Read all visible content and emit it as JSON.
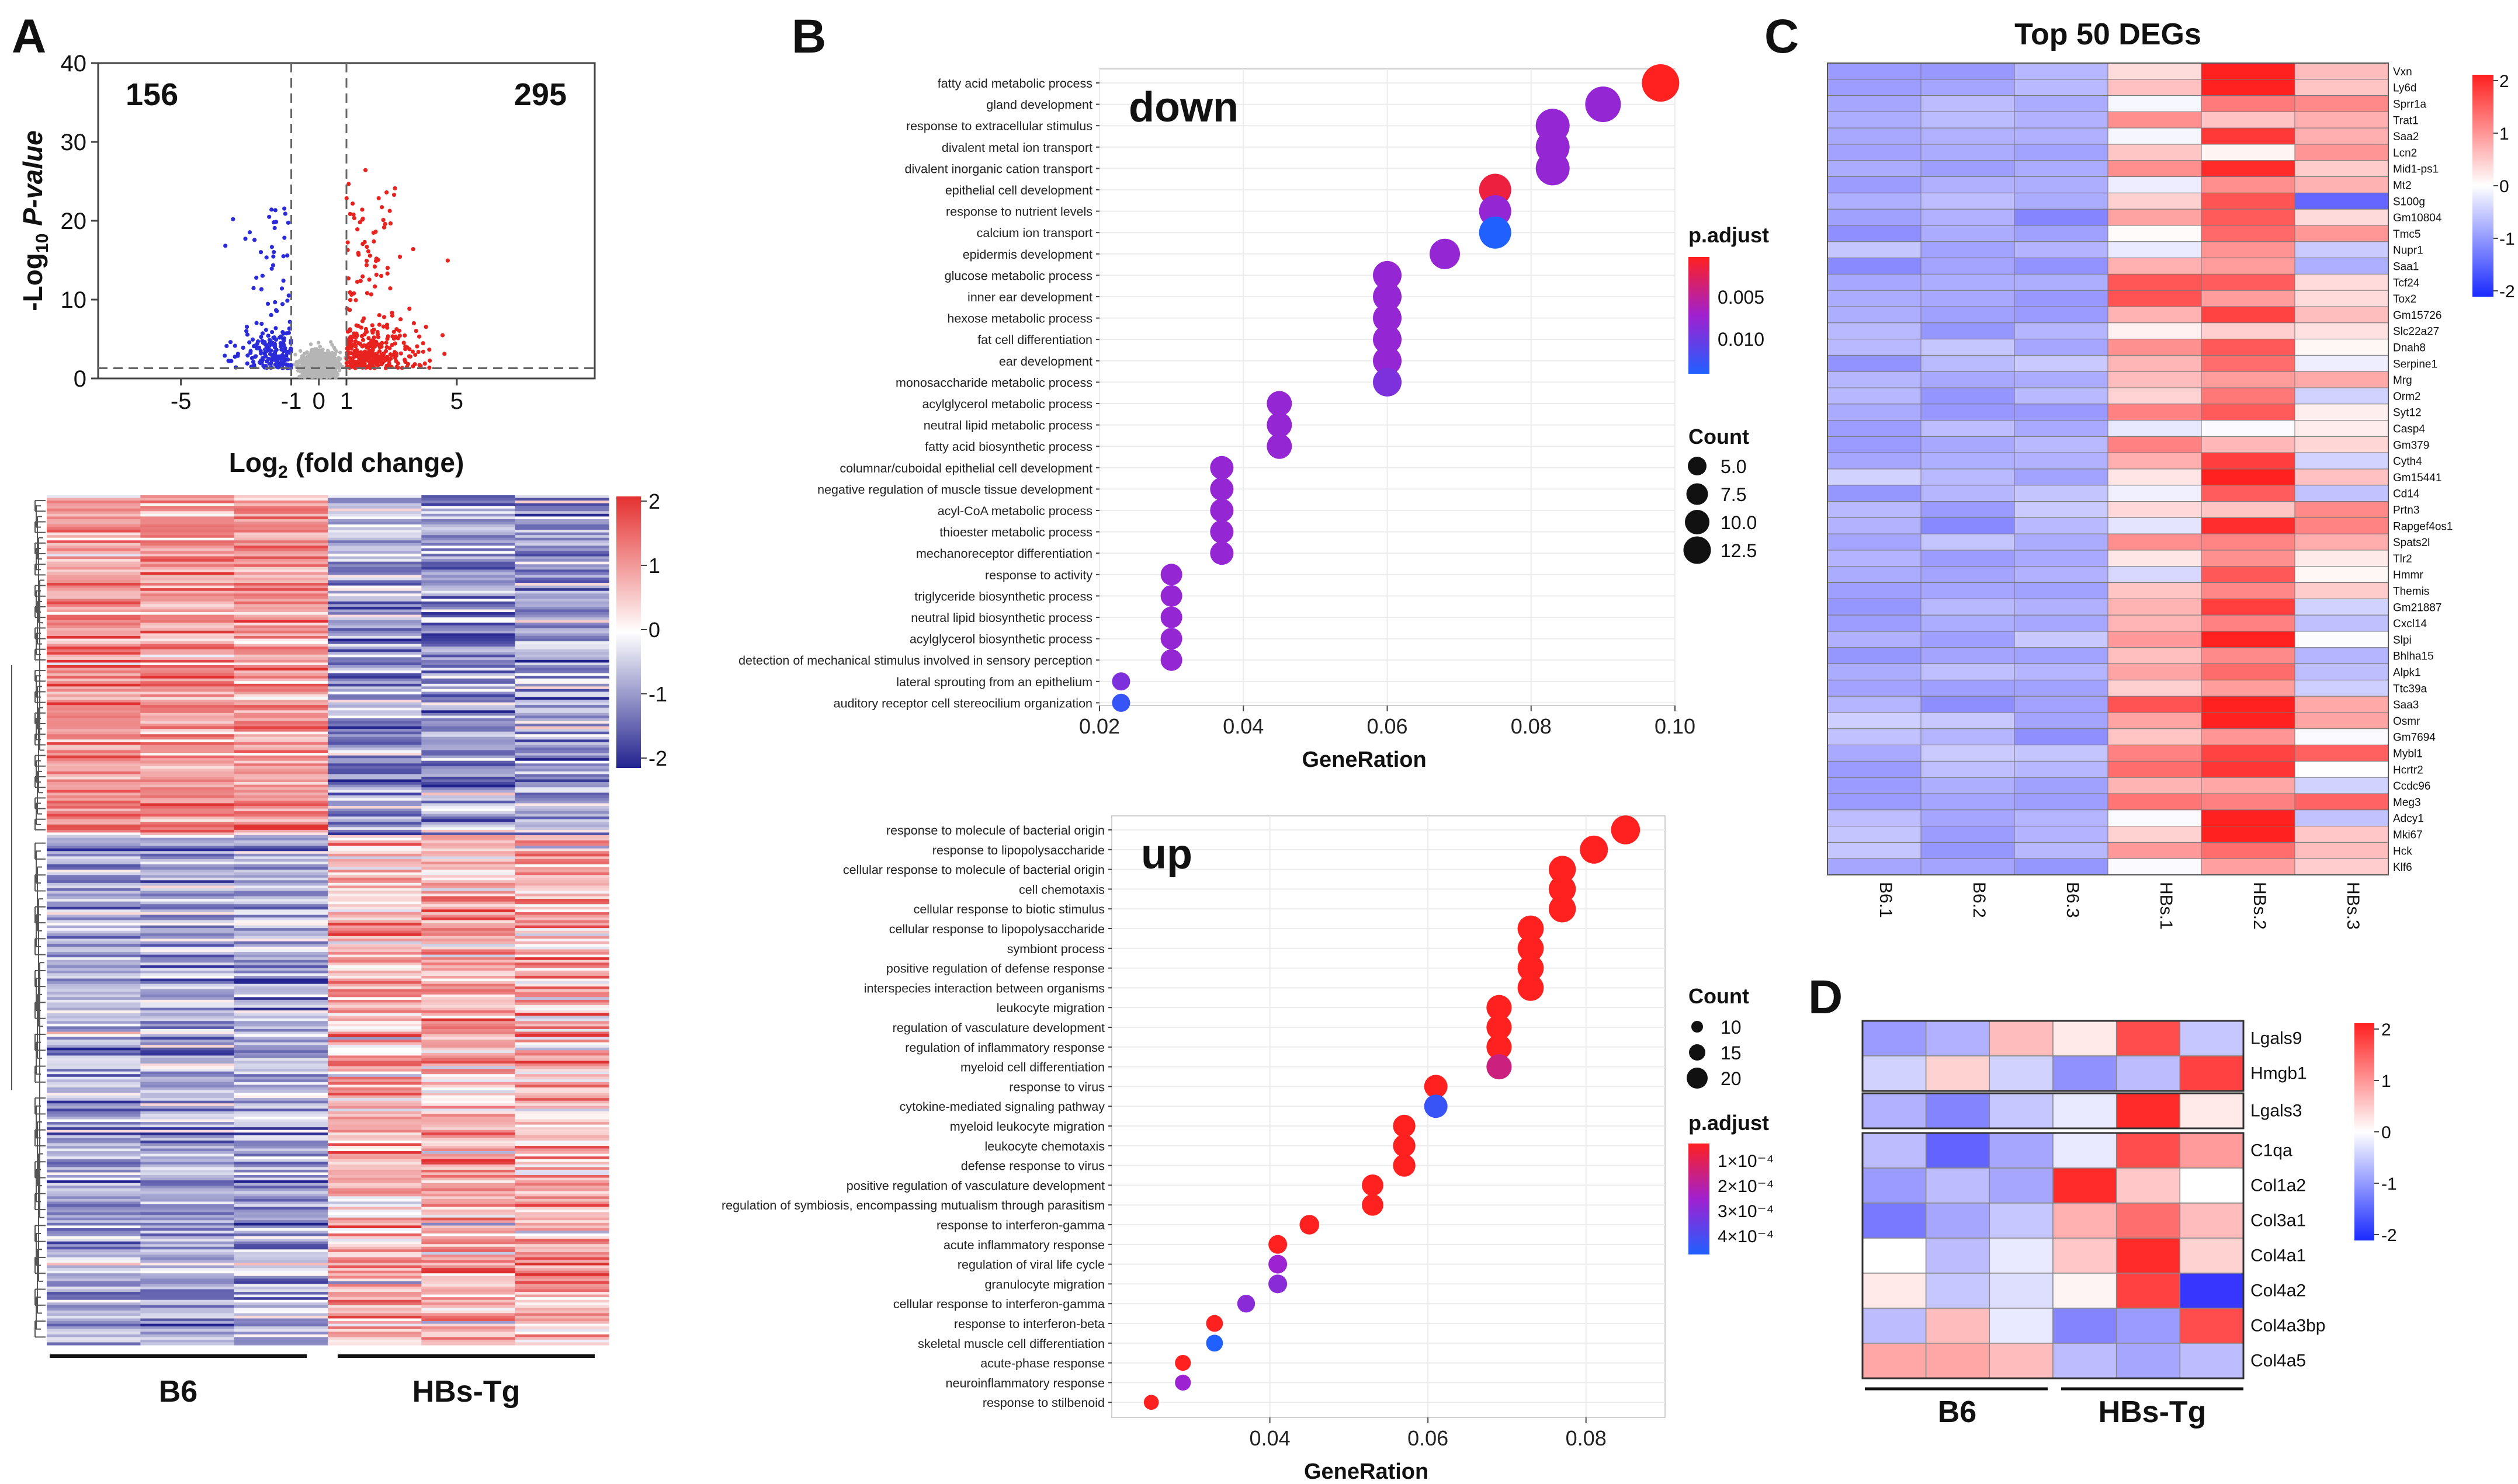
{
  "panels": {
    "A": {
      "label": "A"
    },
    "B": {
      "label": "B"
    },
    "C": {
      "label": "C"
    },
    "D": {
      "label": "D"
    }
  },
  "chart_data": [
    {
      "id": "volcano",
      "type": "scatter",
      "title": "",
      "xlabel_base": "Log",
      "xlabel_sub": "2",
      "xlabel_rest": " (fold change)",
      "ylabel_pre": "-Log",
      "ylabel_sub": "10",
      "ylabel_rest": " P-value",
      "xlim": [
        -8,
        10
      ],
      "ylim": [
        0,
        40
      ],
      "xticks": [
        -5,
        -1,
        0,
        1,
        5
      ],
      "yticks": [
        0,
        10,
        20,
        30,
        40
      ],
      "thresholds": {
        "fold_change": [
          -1,
          1
        ],
        "p_value_line": 1.3
      },
      "down_count": "156",
      "up_count": "295",
      "colors": {
        "down": "#2b2bd9",
        "up": "#e8231f",
        "ns": "#b5b5b5"
      }
    },
    {
      "id": "heatmapA",
      "type": "heatmap",
      "groups": [
        "B6",
        "HBs-Tg"
      ],
      "columns": 6,
      "legend_ticks": [
        "2",
        "1",
        "0",
        "-1",
        "-2"
      ],
      "colors": {
        "high": "#e03030",
        "mid": "#ffffff",
        "low": "#22228f"
      }
    },
    {
      "id": "go_down",
      "type": "scatter",
      "title": "down",
      "xlabel": "GeneRation",
      "xlim": [
        0.02,
        0.1
      ],
      "xticks": [
        "0.02",
        "0.04",
        "0.06",
        "0.08",
        "0.10"
      ],
      "legend_color_title": "p.adjust",
      "legend_color_ticks": [
        "0.005",
        "0.010"
      ],
      "legend_size_title": "Count",
      "legend_size_ticks": [
        "5.0",
        "7.5",
        "10.0",
        "12.5"
      ],
      "terms": [
        {
          "term": "fatty acid metabolic process",
          "x": 0.098,
          "count": 14,
          "padj": 0.002
        },
        {
          "term": "gland development",
          "x": 0.09,
          "count": 13,
          "padj": 0.008
        },
        {
          "term": "response to extracellular stimulus",
          "x": 0.083,
          "count": 12,
          "padj": 0.008
        },
        {
          "term": "divalent metal ion transport",
          "x": 0.083,
          "count": 12,
          "padj": 0.008
        },
        {
          "term": "divalent inorganic cation transport",
          "x": 0.083,
          "count": 12,
          "padj": 0.008
        },
        {
          "term": "epithelial cell development",
          "x": 0.075,
          "count": 11,
          "padj": 0.003
        },
        {
          "term": "response to nutrient levels",
          "x": 0.075,
          "count": 11,
          "padj": 0.008
        },
        {
          "term": "calcium ion transport",
          "x": 0.075,
          "count": 11,
          "padj": 0.013
        },
        {
          "term": "epidermis development",
          "x": 0.068,
          "count": 10,
          "padj": 0.008
        },
        {
          "term": "glucose metabolic process",
          "x": 0.06,
          "count": 9,
          "padj": 0.008
        },
        {
          "term": "inner ear development",
          "x": 0.06,
          "count": 9,
          "padj": 0.008
        },
        {
          "term": "hexose metabolic process",
          "x": 0.06,
          "count": 9,
          "padj": 0.008
        },
        {
          "term": "fat cell differentiation",
          "x": 0.06,
          "count": 9,
          "padj": 0.008
        },
        {
          "term": "ear development",
          "x": 0.06,
          "count": 9,
          "padj": 0.008
        },
        {
          "term": "monosaccharide metabolic process",
          "x": 0.06,
          "count": 9,
          "padj": 0.009
        },
        {
          "term": "acylglycerol metabolic process",
          "x": 0.045,
          "count": 7,
          "padj": 0.008
        },
        {
          "term": "neutral lipid metabolic process",
          "x": 0.045,
          "count": 7,
          "padj": 0.008
        },
        {
          "term": "fatty acid biosynthetic process",
          "x": 0.045,
          "count": 7,
          "padj": 0.008
        },
        {
          "term": "columnar/cuboidal epithelial cell development",
          "x": 0.037,
          "count": 6,
          "padj": 0.008
        },
        {
          "term": "negative regulation of muscle tissue development",
          "x": 0.037,
          "count": 6,
          "padj": 0.008
        },
        {
          "term": "acyl-CoA metabolic process",
          "x": 0.037,
          "count": 6,
          "padj": 0.008
        },
        {
          "term": "thioester metabolic process",
          "x": 0.037,
          "count": 6,
          "padj": 0.008
        },
        {
          "term": "mechanoreceptor differentiation",
          "x": 0.037,
          "count": 6,
          "padj": 0.008
        },
        {
          "term": "response to activity",
          "x": 0.03,
          "count": 5,
          "padj": 0.008
        },
        {
          "term": "triglyceride biosynthetic process",
          "x": 0.03,
          "count": 5,
          "padj": 0.008
        },
        {
          "term": "neutral lipid biosynthetic process",
          "x": 0.03,
          "count": 5,
          "padj": 0.008
        },
        {
          "term": "acylglycerol biosynthetic process",
          "x": 0.03,
          "count": 5,
          "padj": 0.008
        },
        {
          "term": "detection of mechanical stimulus involved in sensory perception",
          "x": 0.03,
          "count": 5,
          "padj": 0.008
        },
        {
          "term": "lateral sprouting from an epithelium",
          "x": 0.023,
          "count": 3,
          "padj": 0.009
        },
        {
          "term": "auditory receptor cell stereocilium organization",
          "x": 0.023,
          "count": 3,
          "padj": 0.012
        }
      ]
    },
    {
      "id": "go_up",
      "type": "scatter",
      "title": "up",
      "xlabel": "GeneRation",
      "xlim": [
        0.02,
        0.09
      ],
      "xticks": [
        "0.04",
        "0.06",
        "0.08"
      ],
      "legend_size_title": "Count",
      "legend_size_ticks": [
        "10",
        "15",
        "20"
      ],
      "legend_color_title": "p.adjust",
      "legend_color_ticks": [
        "1×10⁻⁴",
        "2×10⁻⁴",
        "3×10⁻⁴",
        "4×10⁻⁴"
      ],
      "terms": [
        {
          "term": "response to molecule of bacterial origin",
          "x": 0.085,
          "count": 21,
          "padj": 1e-05
        },
        {
          "term": "response to lipopolysaccharide",
          "x": 0.081,
          "count": 20,
          "padj": 1e-05
        },
        {
          "term": "cellular response to molecule of bacterial origin",
          "x": 0.077,
          "count": 19,
          "padj": 1e-05
        },
        {
          "term": "cell chemotaxis",
          "x": 0.077,
          "count": 19,
          "padj": 1e-05
        },
        {
          "term": "cellular response to biotic stimulus",
          "x": 0.077,
          "count": 19,
          "padj": 1e-05
        },
        {
          "term": "cellular response to lipopolysaccharide",
          "x": 0.073,
          "count": 18,
          "padj": 1e-05
        },
        {
          "term": "symbiont process",
          "x": 0.073,
          "count": 18,
          "padj": 1e-05
        },
        {
          "term": "positive regulation of defense response",
          "x": 0.073,
          "count": 18,
          "padj": 1e-05
        },
        {
          "term": "interspecies interaction between organisms",
          "x": 0.073,
          "count": 18,
          "padj": 1e-05
        },
        {
          "term": "leukocyte migration",
          "x": 0.069,
          "count": 17,
          "padj": 1e-05
        },
        {
          "term": "regulation of vasculature development",
          "x": 0.069,
          "count": 17,
          "padj": 1e-05
        },
        {
          "term": "regulation of inflammatory response",
          "x": 0.069,
          "count": 17,
          "padj": 1e-05
        },
        {
          "term": "myeloid cell differentiation",
          "x": 0.069,
          "count": 17,
          "padj": 0.00012
        },
        {
          "term": "response to virus",
          "x": 0.061,
          "count": 15,
          "padj": 1e-05
        },
        {
          "term": "cytokine-mediated signaling pathway",
          "x": 0.061,
          "count": 15,
          "padj": 0.00038
        },
        {
          "term": "myeloid leukocyte migration",
          "x": 0.057,
          "count": 14,
          "padj": 1e-05
        },
        {
          "term": "leukocyte chemotaxis",
          "x": 0.057,
          "count": 14,
          "padj": 1e-05
        },
        {
          "term": "defense response to virus",
          "x": 0.057,
          "count": 14,
          "padj": 1e-05
        },
        {
          "term": "positive regulation of vasculature development",
          "x": 0.053,
          "count": 13,
          "padj": 1e-05
        },
        {
          "term": "regulation of symbiosis, encompassing mutualism through parasitism",
          "x": 0.053,
          "count": 13,
          "padj": 1e-05
        },
        {
          "term": "response to interferon-gamma",
          "x": 0.045,
          "count": 11,
          "padj": 1e-05
        },
        {
          "term": "acute inflammatory response",
          "x": 0.041,
          "count": 10,
          "padj": 1e-05
        },
        {
          "term": "regulation of viral life cycle",
          "x": 0.041,
          "count": 10,
          "padj": 0.00022
        },
        {
          "term": "granulocyte migration",
          "x": 0.041,
          "count": 10,
          "padj": 0.00025
        },
        {
          "term": "cellular response to interferon-gamma",
          "x": 0.037,
          "count": 9,
          "padj": 0.00025
        },
        {
          "term": "response to interferon-beta",
          "x": 0.033,
          "count": 8,
          "padj": 1e-05
        },
        {
          "term": "skeletal muscle cell differentiation",
          "x": 0.033,
          "count": 8,
          "padj": 0.00042
        },
        {
          "term": "acute-phase response",
          "x": 0.029,
          "count": 7,
          "padj": 1e-05
        },
        {
          "term": "neuroinflammatory response",
          "x": 0.029,
          "count": 7,
          "padj": 0.00022
        },
        {
          "term": "response to stilbenoid",
          "x": 0.025,
          "count": 6,
          "padj": 1e-05
        }
      ]
    },
    {
      "id": "heatmapC",
      "type": "heatmap",
      "title": "Top 50 DEGs",
      "columns": [
        "B6.1",
        "B6.2",
        "B6.3",
        "HBs.1",
        "HBs.2",
        "HBs.3"
      ],
      "legend_ticks": [
        "2",
        "1",
        "0",
        "-1",
        "-2"
      ],
      "rows": [
        "Vxn",
        "Ly6d",
        "Sprr1a",
        "Trat1",
        "Saa2",
        "Lcn2",
        "Mid1-ps1",
        "Mt2",
        "S100g",
        "Gm10804",
        "Tmc5",
        "Nupr1",
        "Saa1",
        "Tcf24",
        "Tox2",
        "Gm15726",
        "Slc22a27",
        "Dnah8",
        "Serpine1",
        "Mrg",
        "Orm2",
        "Syt12",
        "Casp4",
        "Gm379",
        "Cyth4",
        "Gm15441",
        "Cd14",
        "Prtn3",
        "Rapgef4os1",
        "Spats2l",
        "Tlr2",
        "Hmmr",
        "Themis",
        "Gm21887",
        "Cxcl14",
        "Slpi",
        "Bhlha15",
        "Alpk1",
        "Ttc39a",
        "Saa3",
        "Osmr",
        "Gm7694",
        "Mybl1",
        "Hcrtr2",
        "Ccdc96",
        "Meg3",
        "Adcy1",
        "Mki67",
        "Hck",
        "Klf6"
      ]
    },
    {
      "id": "heatmapD",
      "type": "heatmap",
      "groups": [
        "B6",
        "HBs-Tg"
      ],
      "legend_ticks": [
        "2",
        "1",
        "0",
        "-1",
        "-2"
      ],
      "rows": [
        "Lgals9",
        "Hmgb1",
        "Lgals3",
        "C1qa",
        "Col1a2",
        "Col3a1",
        "Col4a1",
        "Col4a2",
        "Col4a3bp",
        "Col4a5"
      ],
      "values": [
        [
          -0.9,
          -0.7,
          0.6,
          0.2,
          1.6,
          -0.5
        ],
        [
          -0.4,
          0.4,
          -0.4,
          -1.0,
          -0.6,
          1.7
        ],
        [
          -0.7,
          -1.1,
          -0.5,
          -0.2,
          1.9,
          0.2
        ],
        [
          -0.6,
          -1.4,
          -0.8,
          -0.2,
          1.6,
          0.9
        ],
        [
          -0.9,
          -0.6,
          -0.8,
          1.9,
          0.5,
          0.0
        ],
        [
          -1.2,
          -0.8,
          -0.5,
          0.7,
          1.3,
          0.6
        ],
        [
          0.0,
          -0.6,
          -0.2,
          0.5,
          1.9,
          0.4
        ],
        [
          0.2,
          -0.5,
          -0.3,
          0.1,
          1.7,
          -1.8
        ],
        [
          -0.6,
          0.6,
          -0.2,
          -1.1,
          -0.9,
          1.6
        ],
        [
          0.8,
          0.8,
          0.6,
          -0.6,
          -0.8,
          -0.6
        ]
      ]
    }
  ]
}
